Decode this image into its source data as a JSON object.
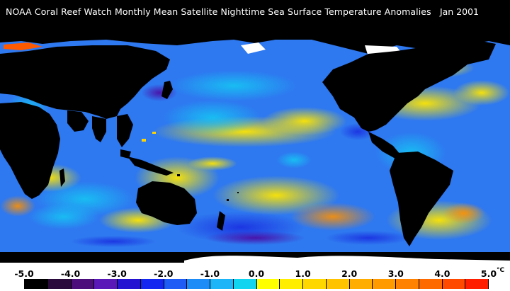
{
  "title": "NOAA Coral Reef Watch Monthly Mean Satellite Nighttime Sea Surface Temperature Anomalies",
  "date": "Jan 2001",
  "legend": {
    "ticks": [
      "-5.0",
      "-4.0",
      "-3.0",
      "-2.0",
      "-1.0",
      "0.0",
      "1.0",
      "2.0",
      "3.0",
      "4.0",
      "5.0"
    ],
    "unit": "°C",
    "colors": [
      "#000000",
      "#2a0a3c",
      "#4b0e7a",
      "#5a18b8",
      "#2414d2",
      "#1427f0",
      "#1f5cf5",
      "#1e8cf7",
      "#1eb4f8",
      "#11d4f0",
      "#ffff00",
      "#ffee00",
      "#ffd700",
      "#ffc300",
      "#ffad00",
      "#ff9a00",
      "#ff8200",
      "#ff6a00",
      "#ff4a00",
      "#ff1e00"
    ]
  },
  "map_colors": {
    "land": "#000000",
    "ice": "#ffffff",
    "ocean_base": "#2d7af2",
    "warm": "#ffd400",
    "hot": "#ff7a00",
    "cool": "#1b49e6",
    "cold": "#4b1cb0",
    "cyan": "#17b9f5"
  }
}
